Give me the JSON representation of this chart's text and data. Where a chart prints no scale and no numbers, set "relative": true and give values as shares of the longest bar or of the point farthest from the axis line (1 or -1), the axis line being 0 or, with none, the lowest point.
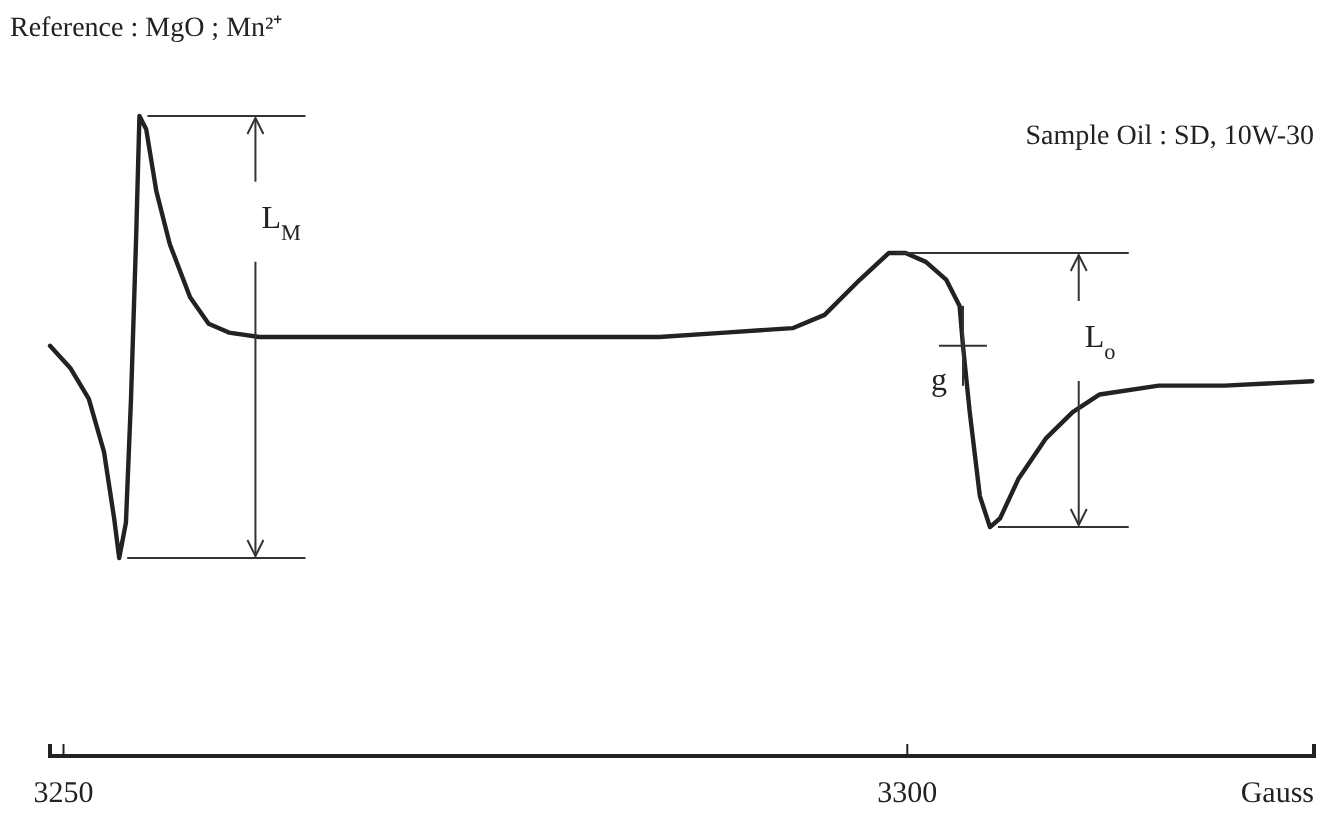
{
  "chart_data": {
    "type": "line",
    "relative": true,
    "title": "Reference : MgO ; Mn²⁺",
    "subtitle": "Sample Oil : SD, 10W-30",
    "xlabel": "Gauss",
    "xlim": [
      3249.2,
      3324.1
    ],
    "xticks": [
      3250,
      3300
    ],
    "series": [
      {
        "color": "#222222",
        "x": [
          3249.2,
          3250.4,
          3251.5,
          3252.4,
          3253.0,
          3253.3,
          3253.7,
          3254.0,
          3254.3,
          3254.5,
          3254.9,
          3255.5,
          3256.3,
          3257.5,
          3258.6,
          3259.8,
          3261.6,
          3265.8,
          3269.9,
          3275.8,
          3281.8,
          3285.3,
          3289.2,
          3293.2,
          3295.1,
          3297.2,
          3298.9,
          3299.9,
          3301.1,
          3302.3,
          3303.1,
          3303.3,
          3303.7,
          3304.3,
          3304.9,
          3305.5,
          3306.6,
          3308.2,
          3309.8,
          3311.4,
          3314.9,
          3318.8,
          3324.0
        ],
        "values": [
          0.48,
          0.43,
          0.36,
          0.24,
          0.09,
          0,
          0.08,
          0.36,
          0.72,
          1,
          0.97,
          0.83,
          0.71,
          0.59,
          0.53,
          0.51,
          0.5,
          0.5,
          0.5,
          0.5,
          0.5,
          0.5,
          0.51,
          0.52,
          0.55,
          0.63,
          0.69,
          0.69,
          0.67,
          0.63,
          0.57,
          0.48,
          0.33,
          0.14,
          0.07,
          0.09,
          0.18,
          0.27,
          0.33,
          0.37,
          0.39,
          0.39,
          0.4
        ]
      }
    ],
    "annotations": [
      "L$_{M}$",
      "L$_{o}$",
      {
        "text": "g",
        "x": 3303.3,
        "y": 0.48
      }
    ],
    "line_style": "solid",
    "marker": "none"
  }
}
